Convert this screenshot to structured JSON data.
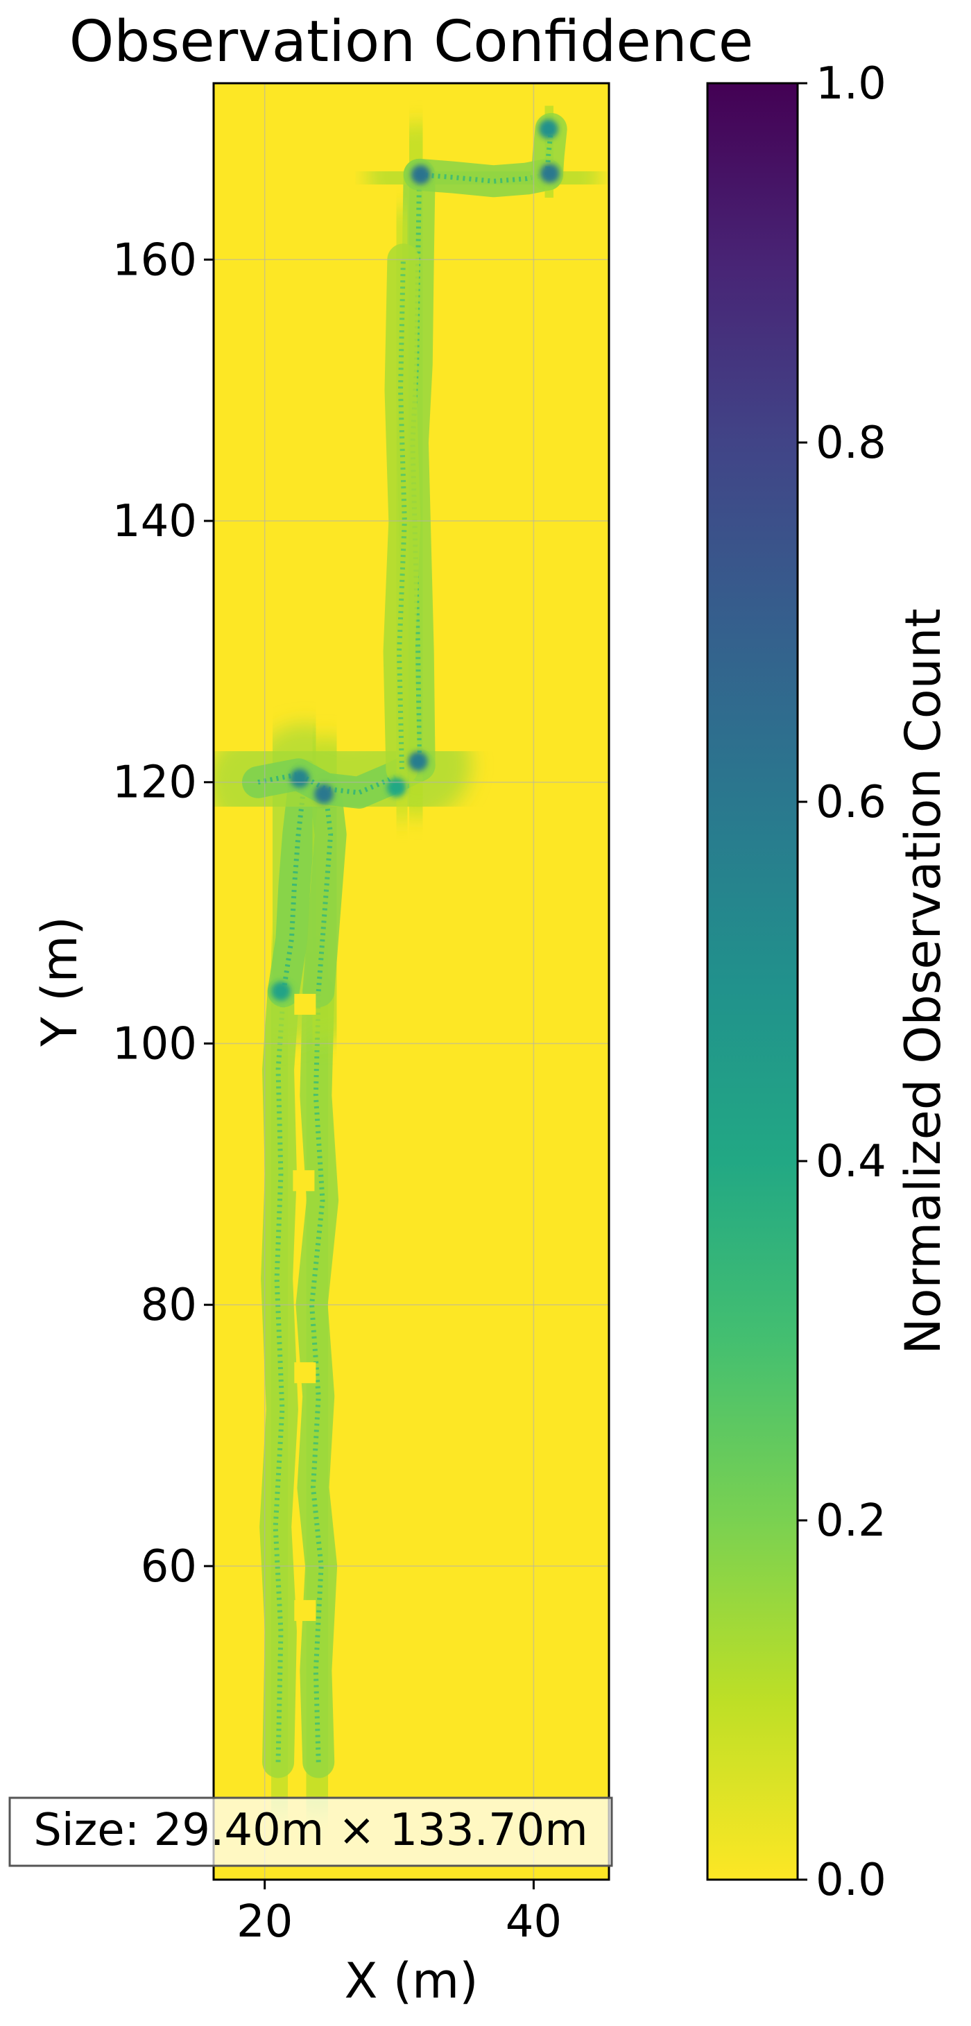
{
  "chart_data": {
    "type": "heatmap",
    "title": "Observation Confidence",
    "xlabel": "X (m)",
    "ylabel": "Y (m)",
    "xlim": [
      16.2,
      45.6
    ],
    "ylim": [
      36.0,
      173.5
    ],
    "xticks": [
      20,
      40
    ],
    "yticks": [
      60,
      80,
      100,
      120,
      140,
      160
    ],
    "grid": true,
    "colormap": "viridis_r",
    "colorbar": {
      "label": "Normalized Observation Count",
      "range": [
        0.0,
        1.0
      ],
      "ticks": [
        0.0,
        0.2,
        0.4,
        0.6,
        0.8,
        1.0
      ],
      "tick_labels": [
        "0.0",
        "0.2",
        "0.4",
        "0.6",
        "0.8",
        "1.0"
      ]
    },
    "annotation": "Size: 29.40m × 133.70m",
    "background_value": 0.0,
    "trajectory_segments": [
      {
        "x": [
          24.0,
          23.8,
          24.2,
          23.6,
          24.0,
          23.5,
          24.3,
          23.8,
          24.0
        ],
        "y": [
          45,
          52,
          60,
          66,
          73,
          80,
          88,
          96,
          104
        ],
        "value": 0.2
      },
      {
        "x": [
          21.0,
          21.2,
          20.8,
          21.3,
          20.9,
          21.2,
          21.0,
          21.4
        ],
        "y": [
          45,
          55,
          63,
          72,
          82,
          90,
          98,
          104
        ],
        "value": 0.18
      },
      {
        "x": [
          21.4,
          22.0,
          22.2,
          22.5,
          23.0
        ],
        "y": [
          104,
          108,
          112,
          116,
          120.5
        ],
        "value": 0.24
      },
      {
        "x": [
          24.0,
          24.3,
          24.6,
          24.9,
          24.5
        ],
        "y": [
          104,
          108,
          112,
          116,
          119.5
        ],
        "value": 0.22
      },
      {
        "x": [
          19.5,
          22.5,
          24.5,
          27.0,
          29.5,
          31.5
        ],
        "y": [
          120.0,
          120.6,
          119.5,
          119.2,
          120.3,
          121.3
        ],
        "value": 0.25
      },
      {
        "x": [
          31.5,
          31.4,
          31.2,
          31.0,
          31.3,
          31.4,
          31.5
        ],
        "y": [
          121.3,
          130,
          138,
          146,
          152,
          160,
          166.5
        ],
        "value": 0.2
      },
      {
        "x": [
          30.2,
          30.0,
          30.4,
          30.1,
          30.3
        ],
        "y": [
          121.0,
          130,
          140,
          150,
          160
        ],
        "value": 0.16
      },
      {
        "x": [
          31.5,
          34.0,
          37.0,
          39.5,
          41.0
        ],
        "y": [
          166.5,
          166.3,
          166.0,
          166.2,
          166.5
        ],
        "value": 0.22
      },
      {
        "x": [
          41.0,
          41.1,
          41.3
        ],
        "y": [
          166.5,
          168.0,
          170.0
        ],
        "value": 0.2
      }
    ],
    "hotspots": [
      {
        "x": 22.6,
        "y": 120.3,
        "value": 0.55
      },
      {
        "x": 24.4,
        "y": 119.1,
        "value": 0.6
      },
      {
        "x": 31.4,
        "y": 121.6,
        "value": 0.58
      },
      {
        "x": 31.6,
        "y": 166.5,
        "value": 0.62
      },
      {
        "x": 41.2,
        "y": 166.6,
        "value": 0.6
      },
      {
        "x": 41.1,
        "y": 170.0,
        "value": 0.5
      },
      {
        "x": 21.2,
        "y": 104.0,
        "value": 0.42
      },
      {
        "x": 29.8,
        "y": 119.6,
        "value": 0.4
      }
    ],
    "holes": [
      {
        "x": 23.0,
        "y": 103.0
      },
      {
        "x": 22.9,
        "y": 89.5
      },
      {
        "x": 23.0,
        "y": 74.8
      },
      {
        "x": 23.0,
        "y": 56.6
      }
    ]
  }
}
